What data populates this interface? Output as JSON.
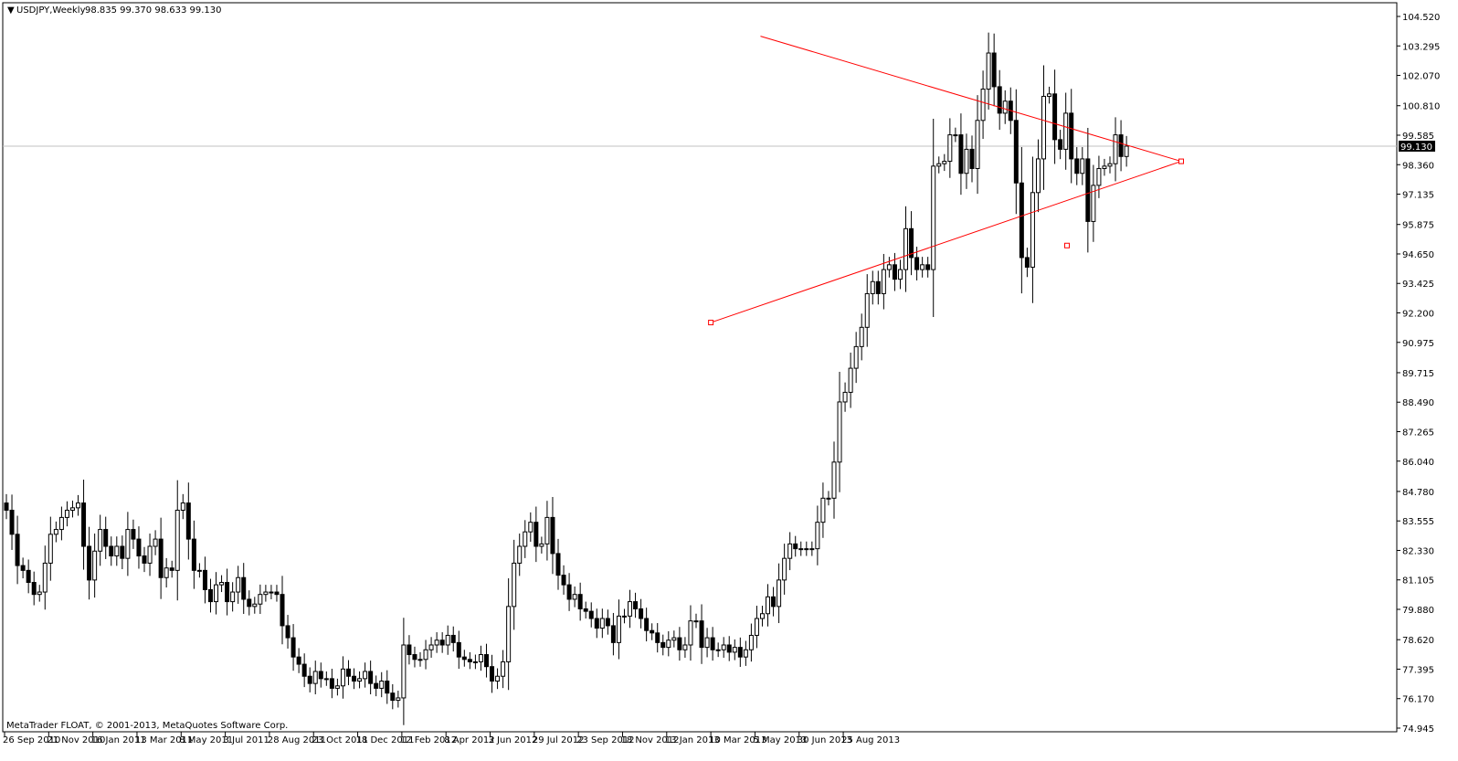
{
  "header": {
    "symbol": "USDJPY,Weekly",
    "ohlc": "98.835 99.370 98.633 99.130"
  },
  "footer": {
    "copyright": "MetaTrader FLOAT, © 2001-2013, MetaQuotes Software Corp."
  },
  "colors": {
    "pattern": "#ff0000",
    "candle_bear": "#000000",
    "candle_bull": "#ffffff",
    "price_line": "#c0c0c0"
  },
  "chart_data": {
    "type": "candlestick",
    "ylim": [
      74.945,
      104.52
    ],
    "y_ticks": [
      "104.520",
      "103.295",
      "102.070",
      "100.810",
      "99.585",
      "98.360",
      "97.135",
      "95.875",
      "94.650",
      "93.425",
      "92.200",
      "90.975",
      "89.715",
      "88.490",
      "87.265",
      "86.040",
      "84.780",
      "83.555",
      "82.330",
      "81.105",
      "79.880",
      "78.620",
      "77.395",
      "76.170",
      "74.945"
    ],
    "x_ticks": [
      "26 Sep 2010",
      "21 Nov 2010",
      "16 Jan 2011",
      "13 Mar 2011",
      "8 May 2011",
      "3 Jul 2011",
      "28 Aug 2011",
      "23 Oct 2011",
      "18 Dec 2011",
      "12 Feb 2012",
      "8 Apr 2012",
      "3 Jun 2012",
      "29 Jul 2012",
      "23 Sep 2012",
      "18 Nov 2012",
      "13 Jan 2013",
      "10 Mar 2013",
      "5 May 2013",
      "30 Jun 2013",
      "25 Aug 2013"
    ],
    "current_price": "99.130",
    "closes": [
      84.0,
      83.0,
      81.7,
      81.5,
      81.0,
      80.5,
      80.6,
      81.8,
      83.0,
      83.2,
      83.7,
      84.0,
      84.1,
      84.3,
      82.5,
      81.1,
      82.3,
      83.2,
      82.5,
      82.1,
      82.5,
      82.0,
      83.2,
      82.8,
      82.1,
      81.8,
      82.5,
      82.8,
      81.2,
      81.6,
      81.5,
      84.0,
      84.3,
      82.8,
      81.5,
      81.5,
      80.7,
      80.2,
      80.9,
      81.0,
      80.2,
      80.6,
      81.2,
      80.3,
      80.0,
      80.1,
      80.5,
      80.6,
      80.6,
      80.5,
      79.2,
      78.7,
      77.9,
      77.6,
      77.1,
      76.8,
      77.3,
      77.0,
      77.0,
      76.6,
      76.7,
      77.4,
      77.1,
      76.9,
      77.0,
      77.3,
      76.8,
      76.6,
      76.9,
      76.4,
      76.1,
      76.2,
      78.4,
      78.0,
      77.8,
      77.8,
      78.2,
      78.4,
      78.6,
      78.4,
      78.8,
      78.5,
      77.9,
      77.8,
      77.7,
      77.7,
      78.0,
      77.5,
      76.9,
      77.1,
      77.7,
      80.0,
      81.8,
      82.5,
      83.1,
      83.5,
      82.5,
      82.6,
      83.7,
      82.2,
      81.3,
      80.9,
      80.3,
      80.5,
      79.9,
      79.8,
      79.5,
      79.1,
      79.5,
      79.2,
      78.5,
      79.6,
      79.6,
      80.2,
      79.9,
      79.5,
      79.0,
      78.9,
      78.5,
      78.3,
      78.6,
      78.7,
      78.2,
      78.4,
      79.4,
      79.4,
      78.3,
      78.7,
      78.2,
      78.2,
      78.4,
      78.1,
      78.3,
      77.9,
      78.2,
      78.8,
      79.5,
      79.7,
      80.4,
      80.0,
      81.1,
      82.0,
      82.6,
      82.4,
      82.4,
      82.4,
      82.4,
      83.5,
      84.5,
      84.5,
      86.0,
      88.5,
      88.9,
      89.9,
      90.8,
      91.6,
      93.0,
      93.5,
      93.0,
      94.0,
      94.2,
      93.6,
      94.0,
      95.7,
      94.5,
      94.0,
      94.2,
      94.0,
      98.3,
      98.4,
      98.5,
      99.6,
      99.6,
      98.0,
      99.0,
      98.2,
      100.2,
      101.5,
      103.0,
      101.6,
      100.5,
      101.0,
      100.2,
      97.6,
      94.5,
      94.1,
      97.2,
      98.6,
      101.2,
      101.3,
      99.4,
      99.0,
      100.5,
      98.6,
      98.0,
      98.6,
      96.0,
      97.5,
      98.2,
      98.3,
      98.4,
      99.6,
      98.7,
      99.13
    ]
  },
  "pattern": {
    "apex_top": {
      "date": "5 May 2013",
      "price": 103.7
    },
    "apex_bottom": {
      "date": "10 Mar 2013",
      "price": 91.8
    },
    "apex_right": {
      "price": 98.5
    },
    "mid_point": {
      "price": 95.0
    }
  }
}
